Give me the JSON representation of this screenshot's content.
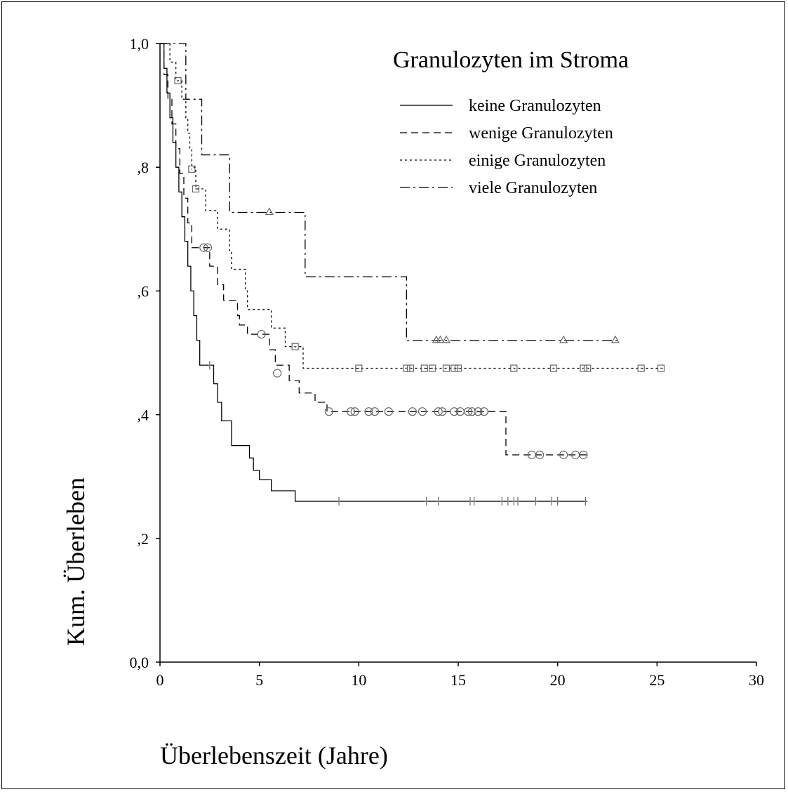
{
  "chart_data": {
    "type": "line",
    "subtype": "kaplan-meier",
    "xlabel": "Überlebenszeit (Jahre)",
    "ylabel": "Kum. Überleben",
    "xlim": [
      0,
      30
    ],
    "ylim": [
      0,
      1
    ],
    "x_ticks": [
      0,
      5,
      10,
      15,
      20,
      25,
      30
    ],
    "x_tick_labels": [
      "0",
      "5",
      "10",
      "15",
      "20",
      "25",
      "30"
    ],
    "y_ticks": [
      0,
      0.2,
      0.4,
      0.6,
      0.8,
      1.0
    ],
    "y_tick_labels": [
      "0,0",
      ",2",
      ",4",
      ",6",
      ",8",
      "1,0"
    ],
    "grid": false,
    "legend": {
      "title": "Granulozyten im Stroma",
      "position": "top-right"
    },
    "series": [
      {
        "name": "keine Granulozyten",
        "dash": "solid",
        "censor_marker": "plus",
        "steps": [
          [
            0,
            1.0
          ],
          [
            0.2,
            0.96
          ],
          [
            0.35,
            0.92
          ],
          [
            0.5,
            0.88
          ],
          [
            0.65,
            0.84
          ],
          [
            0.8,
            0.8
          ],
          [
            0.95,
            0.76
          ],
          [
            1.1,
            0.72
          ],
          [
            1.25,
            0.68
          ],
          [
            1.4,
            0.64
          ],
          [
            1.55,
            0.6
          ],
          [
            1.7,
            0.56
          ],
          [
            1.85,
            0.52
          ],
          [
            2.0,
            0.48
          ],
          [
            2.7,
            0.45
          ],
          [
            2.9,
            0.42
          ],
          [
            3.1,
            0.39
          ],
          [
            3.6,
            0.35
          ],
          [
            4.5,
            0.33
          ],
          [
            4.7,
            0.31
          ],
          [
            5.0,
            0.295
          ],
          [
            5.6,
            0.277
          ],
          [
            6.8,
            0.26
          ]
        ],
        "censored": [
          [
            2.5,
            0.48
          ],
          [
            9.0,
            0.26
          ],
          [
            13.4,
            0.26
          ],
          [
            14.0,
            0.26
          ],
          [
            15.6,
            0.26
          ],
          [
            15.8,
            0.26
          ],
          [
            17.2,
            0.26
          ],
          [
            17.5,
            0.26
          ],
          [
            17.8,
            0.26
          ],
          [
            18.0,
            0.26
          ],
          [
            18.9,
            0.26
          ],
          [
            19.7,
            0.26
          ],
          [
            20.0,
            0.26
          ],
          [
            21.4,
            0.26
          ]
        ],
        "end_x": 21.5
      },
      {
        "name": "wenige Granulozyten",
        "dash": "dashed",
        "censor_marker": "circle",
        "steps": [
          [
            0,
            1.0
          ],
          [
            0.2,
            0.95
          ],
          [
            0.4,
            0.91
          ],
          [
            0.6,
            0.87
          ],
          [
            0.8,
            0.83
          ],
          [
            1.0,
            0.79
          ],
          [
            1.2,
            0.75
          ],
          [
            1.4,
            0.71
          ],
          [
            1.6,
            0.67
          ],
          [
            2.5,
            0.64
          ],
          [
            2.9,
            0.61
          ],
          [
            3.2,
            0.585
          ],
          [
            3.9,
            0.56
          ],
          [
            4.0,
            0.545
          ],
          [
            4.4,
            0.53
          ],
          [
            5.5,
            0.505
          ],
          [
            5.8,
            0.48
          ],
          [
            6.5,
            0.455
          ],
          [
            7.0,
            0.435
          ],
          [
            7.8,
            0.42
          ],
          [
            8.4,
            0.405
          ],
          [
            17.4,
            0.335
          ]
        ],
        "censored": [
          [
            2.2,
            0.67
          ],
          [
            2.4,
            0.67
          ],
          [
            5.1,
            0.53
          ],
          [
            5.9,
            0.467
          ],
          [
            8.5,
            0.405
          ],
          [
            9.6,
            0.405
          ],
          [
            9.8,
            0.405
          ],
          [
            10.5,
            0.405
          ],
          [
            10.8,
            0.405
          ],
          [
            11.5,
            0.405
          ],
          [
            12.7,
            0.405
          ],
          [
            13.2,
            0.405
          ],
          [
            14.0,
            0.405
          ],
          [
            14.2,
            0.405
          ],
          [
            14.8,
            0.405
          ],
          [
            15.1,
            0.405
          ],
          [
            15.5,
            0.405
          ],
          [
            15.7,
            0.405
          ],
          [
            16.0,
            0.405
          ],
          [
            16.3,
            0.405
          ],
          [
            18.7,
            0.335
          ],
          [
            19.1,
            0.335
          ],
          [
            20.3,
            0.335
          ],
          [
            20.9,
            0.335
          ],
          [
            21.3,
            0.335
          ]
        ],
        "end_x": 21.5
      },
      {
        "name": "einige Granulozyten",
        "dash": "dotted",
        "censor_marker": "square",
        "steps": [
          [
            0,
            1.0
          ],
          [
            0.5,
            0.97
          ],
          [
            0.8,
            0.94
          ],
          [
            1.1,
            0.91
          ],
          [
            1.3,
            0.88
          ],
          [
            1.4,
            0.855
          ],
          [
            1.5,
            0.83
          ],
          [
            1.6,
            0.8
          ],
          [
            1.8,
            0.765
          ],
          [
            2.3,
            0.73
          ],
          [
            2.9,
            0.7
          ],
          [
            3.5,
            0.665
          ],
          [
            3.6,
            0.635
          ],
          [
            4.3,
            0.6
          ],
          [
            4.4,
            0.57
          ],
          [
            5.6,
            0.54
          ],
          [
            6.3,
            0.51
          ],
          [
            7.2,
            0.475
          ]
        ],
        "censored": [
          [
            1.6,
            0.797
          ],
          [
            1.8,
            0.765
          ],
          [
            0.9,
            0.94
          ],
          [
            6.8,
            0.51
          ],
          [
            10.0,
            0.475
          ],
          [
            12.4,
            0.475
          ],
          [
            12.6,
            0.475
          ],
          [
            13.3,
            0.475
          ],
          [
            13.7,
            0.475
          ],
          [
            14.4,
            0.475
          ],
          [
            14.8,
            0.475
          ],
          [
            15.0,
            0.475
          ],
          [
            17.8,
            0.475
          ],
          [
            19.8,
            0.475
          ],
          [
            21.3,
            0.475
          ],
          [
            21.5,
            0.475
          ],
          [
            24.2,
            0.475
          ],
          [
            25.2,
            0.475
          ]
        ],
        "end_x": 25.3
      },
      {
        "name": "viele Granulozyten",
        "dash": "dash-dot",
        "censor_marker": "triangle",
        "steps": [
          [
            0,
            1.0
          ],
          [
            1.3,
            0.91
          ],
          [
            2.1,
            0.82
          ],
          [
            3.5,
            0.727
          ],
          [
            7.3,
            0.623
          ],
          [
            12.4,
            0.52
          ]
        ],
        "censored": [
          [
            5.5,
            0.727
          ],
          [
            13.9,
            0.52
          ],
          [
            14.1,
            0.52
          ],
          [
            14.4,
            0.52
          ],
          [
            20.3,
            0.52
          ],
          [
            22.9,
            0.52
          ]
        ],
        "end_x": 23.0
      }
    ]
  }
}
